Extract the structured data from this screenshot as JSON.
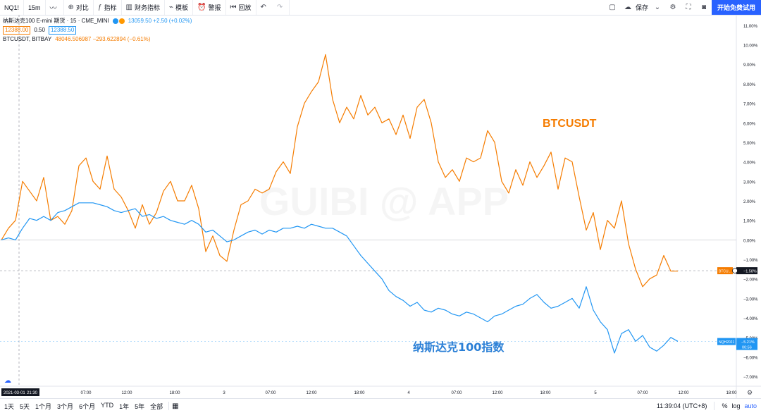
{
  "toolbar": {
    "symbol": "NQ1!",
    "interval": "15m",
    "compare_label": "对比",
    "indicators_label": "指标",
    "financials_label": "财务指标",
    "templates_label": "模板",
    "alert_label": "警报",
    "replay_label": "回放",
    "save_label": "保存",
    "cta_label": "开始免费试用"
  },
  "legend": {
    "main_title": "纳斯达克100 E-mini 期货 · 15 · CME_MINI",
    "main_quote": "13059.50 +2.50 (+0.02%)",
    "bid": "12388.00",
    "spread": "0.50",
    "ask": "12388.50",
    "compare_title": "BTCUSDT, BITBAY",
    "compare_quote": "48046.506987 −293.622894 (−0.61%)"
  },
  "chart_data": {
    "type": "line",
    "watermark": "GUIBI @ APP",
    "ylim": [
      -7.5,
      11.5
    ],
    "y_ticks": [
      "11.00%",
      "10.00%",
      "9.00%",
      "8.00%",
      "7.00%",
      "6.00%",
      "5.00%",
      "4.00%",
      "3.00%",
      "2.00%",
      "1.00%",
      "0.00%",
      "−1.00%",
      "−2.00%",
      "−3.00%",
      "−4.00%",
      "−5.00%",
      "−6.00%",
      "−7.00%"
    ],
    "x_ticks": [
      "07:00",
      "12:00",
      "18:00",
      "3",
      "07:00",
      "12:00",
      "18:00",
      "4",
      "07:00",
      "12:00",
      "18:00",
      "5",
      "07:00",
      "12:00",
      "18:00"
    ],
    "crosshair_date": "2021-03-01",
    "crosshair_time": "21:30",
    "annotations": {
      "btc": "BTCUSDT",
      "nq": "纳斯达克100指数"
    },
    "price_labels": {
      "btc_tag": "BTCU...",
      "btc_value": "−1.58%",
      "nq_tag": "NQH2021",
      "nq_value": "−5.21%",
      "nq_sub": "00:56"
    },
    "series": [
      {
        "name": "BTCUSDT",
        "color": "#f57c00",
        "x": [
          0,
          1,
          2,
          3,
          4,
          5,
          6,
          7,
          8,
          9,
          10,
          11,
          12,
          13,
          14,
          15,
          16,
          17,
          18,
          19,
          20,
          21,
          22,
          23,
          24,
          25,
          26,
          27,
          28,
          29,
          30,
          31,
          32,
          33,
          34,
          35,
          36,
          37,
          38,
          39,
          40,
          41,
          42,
          43,
          44,
          45,
          46,
          47,
          48,
          49,
          50,
          51,
          52,
          53,
          54,
          55,
          56,
          57,
          58,
          59,
          60,
          61,
          62,
          63,
          64,
          65,
          66,
          67,
          68,
          69,
          70,
          71,
          72,
          73,
          74,
          75,
          76,
          77,
          78,
          79,
          80,
          81,
          82,
          83,
          84,
          85,
          86,
          87,
          88,
          89,
          90,
          91,
          92,
          93,
          94,
          95,
          96
        ],
        "values": [
          0,
          0.6,
          1.0,
          3.0,
          2.5,
          2.0,
          3.2,
          1.0,
          1.2,
          0.8,
          1.5,
          3.8,
          4.2,
          3.0,
          2.6,
          4.3,
          2.6,
          2.2,
          1.5,
          0.6,
          1.8,
          0.8,
          1.4,
          2.5,
          3.0,
          2.0,
          2.0,
          2.8,
          1.6,
          -0.6,
          0.2,
          -0.8,
          -1.1,
          0.5,
          1.8,
          2.0,
          2.6,
          2.4,
          2.6,
          3.5,
          4.0,
          3.4,
          5.8,
          7.0,
          7.6,
          8.1,
          9.5,
          7.2,
          6.0,
          6.8,
          6.2,
          7.4,
          6.4,
          6.8,
          6.0,
          6.2,
          5.4,
          6.4,
          5.2,
          6.8,
          7.2,
          6.0,
          4.0,
          3.2,
          3.6,
          3.0,
          4.2,
          4.0,
          4.2,
          5.6,
          5.0,
          3.0,
          2.4,
          3.6,
          2.8,
          4.0,
          3.2,
          3.8,
          4.5,
          2.6,
          4.2,
          4.0,
          2.2,
          0.5,
          1.4,
          -0.5,
          1.0,
          0.6,
          2.0,
          -0.2,
          -1.5,
          -2.4,
          -2.0,
          -1.8,
          -0.8,
          -1.6,
          -1.6
        ]
      },
      {
        "name": "纳斯达克100指数",
        "color": "#2196f3",
        "x": [
          0,
          1,
          2,
          3,
          4,
          5,
          6,
          7,
          8,
          9,
          10,
          11,
          12,
          13,
          14,
          15,
          16,
          17,
          18,
          19,
          20,
          21,
          22,
          23,
          24,
          25,
          26,
          27,
          28,
          29,
          30,
          31,
          32,
          33,
          34,
          35,
          36,
          37,
          38,
          39,
          40,
          41,
          42,
          43,
          44,
          45,
          46,
          47,
          48,
          49,
          50,
          51,
          52,
          53,
          54,
          55,
          56,
          57,
          58,
          59,
          60,
          61,
          62,
          63,
          64,
          65,
          66,
          67,
          68,
          69,
          70,
          71,
          72,
          73,
          74,
          75,
          76,
          77,
          78,
          79,
          80,
          81,
          82,
          83,
          84,
          85,
          86,
          87,
          88,
          89,
          90,
          91,
          92,
          93,
          94,
          95,
          96
        ],
        "values": [
          0,
          0.1,
          0.0,
          0.6,
          1.1,
          1.0,
          1.2,
          1.0,
          1.4,
          1.5,
          1.7,
          1.9,
          1.9,
          1.9,
          1.8,
          1.7,
          1.5,
          1.4,
          1.5,
          1.6,
          1.2,
          1.3,
          1.1,
          1.2,
          1.0,
          0.9,
          0.8,
          1.0,
          0.8,
          0.4,
          0.5,
          0.2,
          -0.1,
          0.0,
          0.2,
          0.4,
          0.5,
          0.3,
          0.5,
          0.4,
          0.6,
          0.6,
          0.7,
          0.6,
          0.8,
          0.7,
          0.6,
          0.6,
          0.4,
          0.2,
          -0.3,
          -0.8,
          -1.2,
          -1.6,
          -2.0,
          -2.6,
          -2.9,
          -3.1,
          -3.4,
          -3.2,
          -3.6,
          -3.7,
          -3.5,
          -3.6,
          -3.8,
          -3.9,
          -3.7,
          -3.8,
          -4.0,
          -4.2,
          -3.9,
          -3.8,
          -3.6,
          -3.4,
          -3.3,
          -3.0,
          -2.8,
          -3.2,
          -3.5,
          -3.4,
          -3.2,
          -3.0,
          -3.5,
          -2.4,
          -3.6,
          -4.2,
          -4.6,
          -5.8,
          -4.8,
          -4.6,
          -5.2,
          -4.9,
          -5.5,
          -5.7,
          -5.4,
          -5.0,
          -5.2
        ]
      }
    ]
  },
  "bottom": {
    "ranges": [
      "1天",
      "5天",
      "1个月",
      "3个月",
      "6个月",
      "YTD",
      "1年",
      "5年",
      "全部"
    ],
    "clock": "11:39:04 (UTC+8)",
    "percent": "%",
    "log": "log",
    "auto": "auto"
  }
}
